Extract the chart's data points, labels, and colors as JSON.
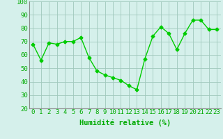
{
  "x": [
    0,
    1,
    2,
    3,
    4,
    5,
    6,
    7,
    8,
    9,
    10,
    11,
    12,
    13,
    14,
    15,
    16,
    17,
    18,
    19,
    20,
    21,
    22,
    23
  ],
  "y": [
    68,
    56,
    69,
    68,
    70,
    70,
    73,
    58,
    48,
    45,
    43,
    41,
    37,
    34,
    57,
    74,
    81,
    76,
    64,
    76,
    86,
    86,
    79,
    79
  ],
  "line_color": "#00cc00",
  "marker": "D",
  "marker_size": 2.5,
  "bg_color": "#d5f0eb",
  "grid_color": "#a0c8bc",
  "xlabel": "Humidité relative (%)",
  "xlabel_color": "#00aa00",
  "tick_color": "#00aa00",
  "ylim": [
    20,
    100
  ],
  "yticks": [
    20,
    30,
    40,
    50,
    60,
    70,
    80,
    90,
    100
  ],
  "xlim": [
    -0.5,
    23.5
  ],
  "xlabel_fontsize": 7.5,
  "tick_fontsize": 6.5,
  "linewidth": 1.0
}
